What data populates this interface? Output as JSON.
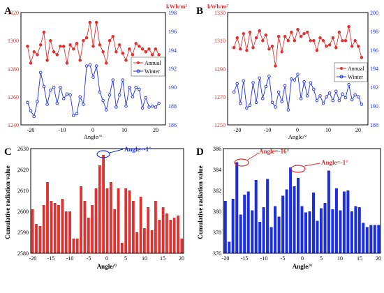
{
  "chart_data": [
    {
      "panel_label": "A",
      "type": "line",
      "unit_label": "kWh/m²",
      "x": [
        -20,
        -19,
        -18,
        -17,
        -16,
        -15,
        -14,
        -13,
        -12,
        -11,
        -10,
        -9,
        -8,
        -7,
        -6,
        -5,
        -4,
        -3,
        -2,
        -1,
        0,
        1,
        2,
        3,
        4,
        5,
        6,
        7,
        8,
        9,
        10,
        11,
        12,
        13,
        14,
        15,
        16,
        17,
        18,
        19,
        20
      ],
      "xticks": [
        "-20",
        "-10",
        "0",
        "10",
        "20"
      ],
      "xlabel": "Angle/°",
      "xlim": [
        -22,
        22
      ],
      "ylim_left": [
        1240,
        1320
      ],
      "yticks_left": [
        "1240",
        "1260",
        "1280",
        "1300",
        "1320"
      ],
      "ylim_right": [
        186,
        198
      ],
      "yticks_right": [
        "186",
        "188",
        "190",
        "192",
        "194",
        "196",
        "198"
      ],
      "legend_position": "right",
      "series": [
        {
          "name": "Annual",
          "axis": "left",
          "color": "#e03030",
          "values": [
            1296,
            1284,
            1292,
            1290,
            1297,
            1306,
            1286,
            1300,
            1292,
            1290,
            1296,
            1296,
            1284,
            1297,
            1294,
            1298,
            1286,
            1300,
            1302,
            1313,
            1296,
            1313,
            1297,
            1292,
            1284,
            1300,
            1303,
            1292,
            1297,
            1291,
            1286,
            1294,
            1290,
            1298,
            1296,
            1294,
            1292,
            1294,
            1290,
            1294,
            1290
          ]
        },
        {
          "name": "Winter",
          "axis": "right",
          "color": "#1a2ee6",
          "values": [
            188.4,
            187.5,
            186.9,
            188.5,
            191.6,
            190.1,
            188.2,
            189.7,
            190.0,
            188.3,
            190.0,
            188.8,
            189.3,
            189.2,
            187.0,
            187.2,
            189.0,
            188.2,
            192.3,
            192.4,
            191.1,
            192.3,
            189.5,
            188.6,
            187.6,
            189.2,
            190.8,
            187.9,
            189.2,
            190.8,
            188.0,
            190.0,
            189.0,
            190.0,
            189.8,
            187.8,
            188.9,
            187.9,
            188.0,
            187.9,
            188.3
          ]
        }
      ]
    },
    {
      "panel_label": "B",
      "type": "line",
      "unit_label": "kWh/m²",
      "x": [
        -20,
        -19,
        -18,
        -17,
        -16,
        -15,
        -14,
        -13,
        -12,
        -11,
        -10,
        -9,
        -8,
        -7,
        -6,
        -5,
        -4,
        -3,
        -2,
        -1,
        0,
        1,
        2,
        3,
        4,
        5,
        6,
        7,
        8,
        9,
        10,
        11,
        12,
        13,
        14,
        15,
        16,
        17,
        18,
        19,
        20
      ],
      "xticks": [
        "-20",
        "-10",
        "0",
        "10",
        "20"
      ],
      "xlabel": "Angle/°",
      "xlim": [
        -22,
        22
      ],
      "ylim_left": [
        1250,
        1330
      ],
      "yticks_left": [
        "1250",
        "1270",
        "1290",
        "1310",
        "1330"
      ],
      "ylim_right": [
        188,
        200
      ],
      "yticks_right": [
        "188",
        "190",
        "192",
        "194",
        "196",
        "198",
        "200"
      ],
      "legend_position": "right",
      "series": [
        {
          "name": "Annual",
          "axis": "left",
          "color": "#e03030",
          "values": [
            1305,
            1312,
            1304,
            1315,
            1303,
            1316,
            1305,
            1312,
            1317,
            1310,
            1314,
            1304,
            1306,
            1292,
            1313,
            1302,
            1313,
            1310,
            1316,
            1310,
            1318,
            1313,
            1315,
            1316,
            1310,
            1310,
            1303,
            1312,
            1310,
            1306,
            1307,
            1312,
            1305,
            1316,
            1310,
            1310,
            1320,
            1306,
            1310,
            1306,
            1298
          ]
        },
        {
          "name": "Winter",
          "axis": "right",
          "color": "#1a2ee6",
          "values": [
            191.5,
            192.4,
            190.3,
            192.7,
            189.8,
            190.1,
            192.5,
            190.4,
            193.0,
            190.8,
            192.1,
            193.2,
            190.4,
            189.9,
            191.5,
            190.5,
            192.2,
            189.6,
            192.9,
            192.8,
            193.4,
            190.8,
            192.6,
            191.1,
            192.5,
            191.8,
            190.6,
            191.1,
            190.3,
            191.0,
            191.4,
            190.6,
            191.6,
            190.6,
            191.3,
            190.9,
            192.3,
            190.7,
            191.2,
            191.0,
            190.2
          ]
        }
      ]
    },
    {
      "panel_label": "C",
      "type": "bar",
      "color": "#e03030",
      "x": [
        -20,
        -19,
        -18,
        -17,
        -16,
        -15,
        -14,
        -13,
        -12,
        -11,
        -10,
        -9,
        -8,
        -7,
        -6,
        -5,
        -4,
        -3,
        -2,
        -1,
        0,
        1,
        2,
        3,
        4,
        5,
        6,
        7,
        8,
        9,
        10,
        11,
        12,
        13,
        14,
        15,
        16,
        17,
        18,
        19,
        20
      ],
      "xticks": [
        "-20",
        "-15",
        "-10",
        "-5",
        "0",
        "5",
        "10",
        "15",
        "20"
      ],
      "xlabel": "Angle/°",
      "ylabel": "Cumulative radiation value",
      "xlim": [
        -20.5,
        20.5
      ],
      "ylim": [
        2580,
        2630
      ],
      "yticks": [
        "2580",
        "2590",
        "2600",
        "2610",
        "2620",
        "2630"
      ],
      "values": [
        2601,
        2594,
        2593,
        2603,
        2614,
        2605,
        2604,
        2603,
        2606,
        2600,
        2600,
        2587,
        2587,
        2612,
        2605,
        2597,
        2603,
        2611,
        2622,
        2627,
        2611,
        2614,
        2601,
        2611,
        2585,
        2611,
        2610,
        2605,
        2590,
        2607,
        2592,
        2602,
        2591,
        2605,
        2596,
        2602,
        2599,
        2596,
        2597,
        2598,
        2587
      ],
      "annotations": [
        {
          "text": "Angle=-1°",
          "x": -1,
          "color": "#1a2ee6"
        }
      ]
    },
    {
      "panel_label": "D",
      "type": "bar",
      "color": "#1a2ee6",
      "x": [
        -20,
        -19,
        -18,
        -17,
        -16,
        -15,
        -14,
        -13,
        -12,
        -11,
        -10,
        -9,
        -8,
        -7,
        -6,
        -5,
        -4,
        -3,
        -2,
        -1,
        0,
        1,
        2,
        3,
        4,
        5,
        6,
        7,
        8,
        9,
        10,
        11,
        12,
        13,
        14,
        15,
        16,
        17,
        18,
        19,
        20
      ],
      "xticks": [
        "-20",
        "-15",
        "-10",
        "-5",
        "0",
        "5",
        "10",
        "15",
        "20"
      ],
      "xlabel": "Angle/°",
      "ylabel": "Cumulative radiation value",
      "xlim": [
        -20.5,
        20.5
      ],
      "ylim": [
        376,
        386
      ],
      "yticks": [
        "376",
        "378",
        "380",
        "382",
        "384",
        "386"
      ],
      "values": [
        381,
        377.1,
        381.2,
        384.7,
        379.7,
        381.6,
        381.9,
        380.1,
        383.0,
        379.0,
        380.4,
        383.1,
        378.5,
        380.5,
        379.5,
        381.5,
        382.1,
        384.2,
        382.4,
        383.2,
        380.5,
        379.9,
        380.0,
        381.8,
        379.1,
        380.3,
        380.8,
        383.9,
        380.2,
        382.2,
        380.1,
        381.9,
        382.0,
        380.0,
        380.5,
        380.4,
        378.9,
        378.5,
        378.7,
        378.7,
        378.7
      ],
      "annotations": [
        {
          "text": "Angle=-16°",
          "x": -16,
          "color": "#e03030"
        },
        {
          "text": "Angle=-1°",
          "x": -1,
          "color": "#e03030"
        }
      ]
    }
  ]
}
